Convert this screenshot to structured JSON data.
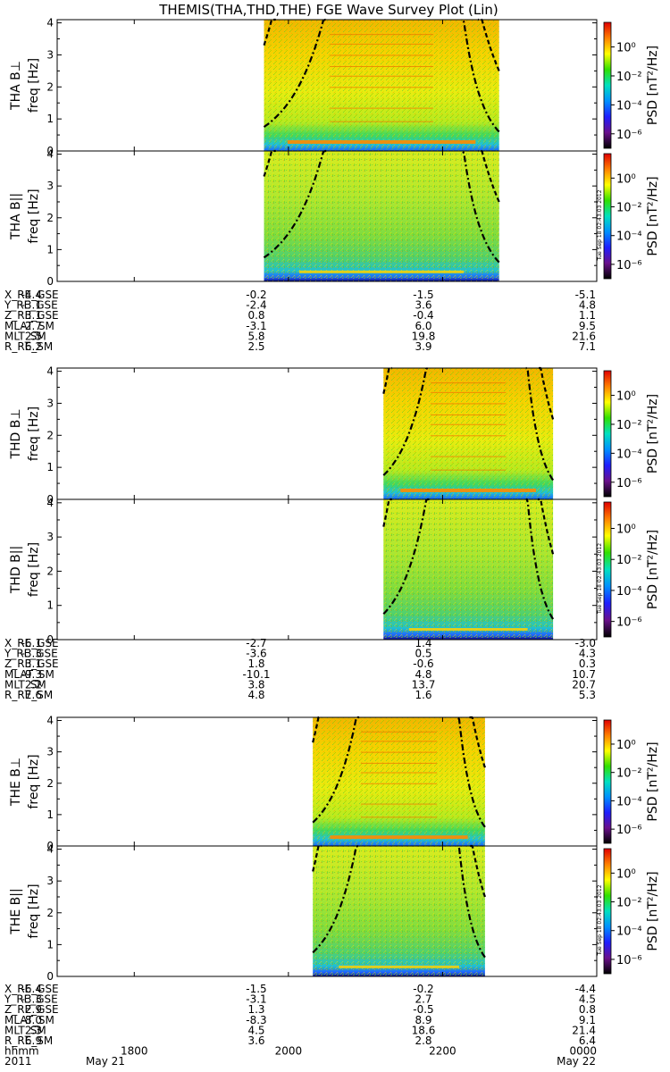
{
  "chart_data": {
    "type": "heatmap",
    "title": "THEMIS(THA,THD,THE) FGE Wave Survey Plot (Lin)",
    "frequency_range_hz": [
      0,
      4.1
    ],
    "frequency_ticks": [
      "0",
      "1",
      "2",
      "3",
      "4"
    ],
    "colorbar": {
      "label": "PSD [nT²/Hz]",
      "ticks": [
        "10⁰",
        "10⁻²",
        "10⁻⁴",
        "10⁻⁶"
      ],
      "range_log10": [
        -7,
        1.7
      ],
      "colors": [
        "#000000",
        "#6a0f8c",
        "#1e1eff",
        "#0090ff",
        "#00e0c0",
        "#30e000",
        "#ffff00",
        "#ff8000",
        "#e00000"
      ]
    },
    "stamp": "Tue Sep 18 02:43:03 2012",
    "time_axis": {
      "start_hhmm": 1700,
      "end_hhmm": 2400,
      "tick_labels": [
        "1800",
        "2000",
        "2200",
        "0000"
      ],
      "row_label": "hhmm",
      "year": "2011",
      "dates": [
        "May 21",
        "May 22"
      ]
    },
    "probes": [
      {
        "name": "THA",
        "data_coverage_hhmm": [
          1941,
          2244
        ],
        "panels": [
          {
            "ylabel": "THA B⊥",
            "ylabel_sub": "freq [Hz]",
            "component": "perp"
          },
          {
            "ylabel": "THA B||",
            "ylabel_sub": "freq [Hz]",
            "component": "par"
          }
        ],
        "ephemeris_labels": [
          "X_RE_GSE",
          "Y_RE_GSE",
          "Z_RE_GSE",
          "MLAT_SM",
          "MLT_SM",
          "R_RE_SM"
        ],
        "ephemeris_values": [
          [
            "-4.4",
            "-0.2",
            "-1.5",
            "-5.1"
          ],
          [
            "-3.1",
            "-2.4",
            "3.6",
            "4.8"
          ],
          [
            "3.1",
            "0.8",
            "-0.4",
            "1.1"
          ],
          [
            "-2.7",
            "-3.1",
            "6.0",
            "9.5"
          ],
          [
            "2.5",
            "5.8",
            "19.8",
            "21.6"
          ],
          [
            "6.2",
            "2.5",
            "3.9",
            "7.1"
          ]
        ]
      },
      {
        "name": "THD",
        "data_coverage_hhmm": [
          2114,
          2326
        ],
        "panels": [
          {
            "ylabel": "THD B⊥",
            "ylabel_sub": "freq [Hz]",
            "component": "perp"
          },
          {
            "ylabel": "THD B||",
            "ylabel_sub": "freq [Hz]",
            "component": "par"
          }
        ],
        "ephemeris_labels": [
          "X_RE_GSE",
          "Y_RE_GSE",
          "Z_RE_GSE",
          "MLAT_SM",
          "MLT_SM",
          "R_RE_SM"
        ],
        "ephemeris_values": [
          [
            "-6.1",
            "-2.7",
            "1.4",
            "-3.0"
          ],
          [
            "-3.3",
            "-3.6",
            "0.5",
            "4.3"
          ],
          [
            "3.1",
            "1.8",
            "-0.6",
            "0.3"
          ],
          [
            "-9.3",
            "-10.1",
            "4.8",
            "10.7"
          ],
          [
            "2.2",
            "3.8",
            "13.7",
            "20.7"
          ],
          [
            "7.6",
            "4.8",
            "1.6",
            "5.3"
          ]
        ]
      },
      {
        "name": "THE",
        "data_coverage_hhmm": [
          2019,
          2233
        ],
        "panels": [
          {
            "ylabel": "THE B⊥",
            "ylabel_sub": "freq [Hz]",
            "component": "perp"
          },
          {
            "ylabel": "THE B||",
            "ylabel_sub": "freq [Hz]",
            "component": "par"
          }
        ],
        "ephemeris_labels": [
          "X_RE_GSE",
          "Y_RE_GSE",
          "Z_RE_GSE",
          "MLAT_SM",
          "MLT_SM",
          "R_RE_SM"
        ],
        "ephemeris_values": [
          [
            "-6.4",
            "-1.5",
            "-0.2",
            "-4.4"
          ],
          [
            "-3.3",
            "-3.1",
            "2.7",
            "4.5"
          ],
          [
            "2.9",
            "1.3",
            "-0.5",
            "0.8"
          ],
          [
            "-8.0",
            "-8.3",
            "8.9",
            "9.1"
          ],
          [
            "2.3",
            "4.5",
            "18.6",
            "21.4"
          ],
          [
            "6.9",
            "3.6",
            "2.8",
            "6.4"
          ]
        ]
      }
    ]
  }
}
